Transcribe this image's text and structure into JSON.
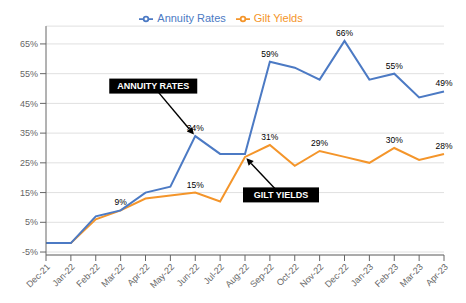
{
  "chart_data": {
    "type": "line",
    "categories": [
      "Dec-21",
      "Jan-22",
      "Feb-22",
      "Mar-22",
      "Apr-22",
      "May-22",
      "Jun-22",
      "Jul-22",
      "Aug-22",
      "Sep-22",
      "Oct-22",
      "Nov-22",
      "Dec-22",
      "Jan-23",
      "Feb-23",
      "Mar-23",
      "Apr-23"
    ],
    "series": [
      {
        "name": "Gilt Yields",
        "color": "#F4952A",
        "values": [
          -2,
          -2,
          6,
          9,
          13,
          14,
          15,
          12,
          27,
          31,
          24,
          29,
          27,
          25,
          30,
          26,
          28
        ],
        "value_labels": [
          null,
          null,
          null,
          "9%",
          null,
          null,
          "15%",
          null,
          null,
          "31%",
          null,
          "29%",
          null,
          null,
          "30%",
          null,
          "28%"
        ]
      },
      {
        "name": "Annuity Rates",
        "color": "#4C7AC4",
        "values": [
          -2,
          -2,
          7,
          9,
          15,
          17,
          34,
          28,
          28,
          59,
          57,
          53,
          66,
          53,
          55,
          47,
          49
        ],
        "value_labels": [
          null,
          null,
          null,
          null,
          null,
          null,
          "34%",
          null,
          null,
          "59%",
          null,
          null,
          "66%",
          null,
          "55%",
          null,
          "49%"
        ]
      }
    ],
    "annotations": [
      {
        "text": "ANNUITY RATES",
        "series": "Annuity Rates"
      },
      {
        "text": "GILT YIELDS",
        "series": "Gilt Yields"
      }
    ],
    "ylim": [
      -6,
      71
    ],
    "yticks": [
      {
        "value": -5,
        "label": "-5%"
      },
      {
        "value": 5,
        "label": "5%"
      },
      {
        "value": 15,
        "label": "15%"
      },
      {
        "value": 25,
        "label": "25%"
      },
      {
        "value": 35,
        "label": "35%"
      },
      {
        "value": 45,
        "label": "45%"
      },
      {
        "value": 55,
        "label": "55%"
      },
      {
        "value": 65,
        "label": "65%"
      }
    ],
    "grid": true,
    "legend": "top",
    "data_labels": true
  }
}
